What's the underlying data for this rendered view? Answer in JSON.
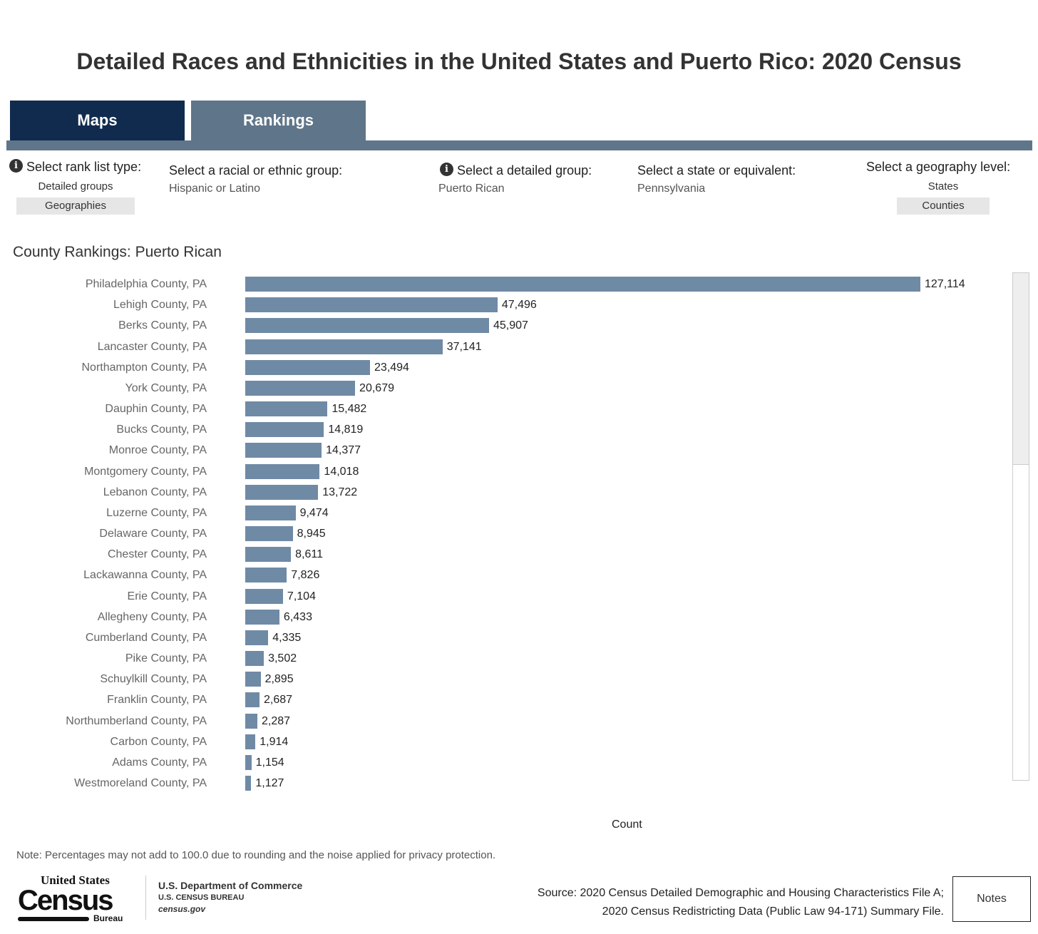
{
  "title": "Detailed Races and Ethnicities in the United States and Puerto Rico: 2020 Census",
  "tabs": [
    {
      "label": "Maps"
    },
    {
      "label": "Rankings"
    }
  ],
  "filters": {
    "rank_type": {
      "label": "Select rank list type:",
      "options": [
        "Detailed groups",
        "Geographies"
      ],
      "selected": "Geographies"
    },
    "group": {
      "label": "Select a racial or ethnic group:",
      "value": "Hispanic or Latino"
    },
    "detailed": {
      "label": "Select a detailed group:",
      "value": "Puerto Rican"
    },
    "state": {
      "label": "Select a state or equivalent:",
      "value": "Pennsylvania"
    },
    "geo": {
      "label": "Select a geography level:",
      "options": [
        "States",
        "Counties"
      ],
      "selected": "Counties"
    }
  },
  "chart_data": {
    "type": "bar",
    "orientation": "horizontal",
    "title": "County Rankings: Puerto Rican",
    "xlabel": "Count",
    "categories": [
      "Philadelphia County, PA",
      "Lehigh County, PA",
      "Berks County, PA",
      "Lancaster County, PA",
      "Northampton County, PA",
      "York County, PA",
      "Dauphin County, PA",
      "Bucks County, PA",
      "Monroe County, PA",
      "Montgomery County, PA",
      "Lebanon County, PA",
      "Luzerne County, PA",
      "Delaware County, PA",
      "Chester County, PA",
      "Lackawanna County, PA",
      "Erie County, PA",
      "Allegheny County, PA",
      "Cumberland County, PA",
      "Pike County, PA",
      "Schuylkill County, PA",
      "Franklin County, PA",
      "Northumberland County, PA",
      "Carbon County, PA",
      "Adams County, PA",
      "Westmoreland County, PA"
    ],
    "values": [
      127114,
      47496,
      45907,
      37141,
      23494,
      20679,
      15482,
      14819,
      14377,
      14018,
      13722,
      9474,
      8945,
      8611,
      7826,
      7104,
      6433,
      4335,
      3502,
      2895,
      2687,
      2287,
      1914,
      1154,
      1127
    ],
    "labels": [
      "127,114",
      "47,496",
      "45,907",
      "37,141",
      "23,494",
      "20,679",
      "15,482",
      "14,819",
      "14,377",
      "14,018",
      "13,722",
      "9,474",
      "8,945",
      "8,611",
      "7,826",
      "7,104",
      "6,433",
      "4,335",
      "3,502",
      "2,895",
      "2,687",
      "2,287",
      "1,914",
      "1,154",
      "1,127"
    ],
    "bar_color": "#6f8aa5"
  },
  "footer": {
    "note": "Note: Percentages may not add to 100.0 due to rounding and the noise applied for privacy protection.",
    "logo": {
      "line1": "United States",
      "line2": "Census",
      "line3": "Bureau"
    },
    "dept": "U.S. Department of Commerce",
    "bureau": "U.S. CENSUS BUREAU",
    "site": "census.gov",
    "source1": "Source: 2020 Census Detailed Demographic and Housing Characteristics File A;",
    "source2": "2020 Census Redistricting Data (Public Law 94-171) Summary File.",
    "notes_button": "Notes"
  }
}
